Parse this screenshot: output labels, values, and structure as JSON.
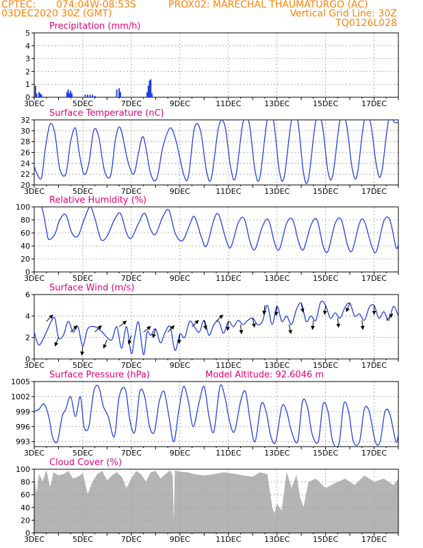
{
  "header": {
    "line1_left": "CPTEC:",
    "line1_coords": "074:04W-08:53S",
    "line1_station": "PROX02: MARECHAL THAUMATURGO (AC)",
    "line2_left": "03DEC2020 30Z (GMT)",
    "line2_right": "Vertical Grid Line: 30Z",
    "line3_right": "TQ0126L028"
  },
  "colors": {
    "header": "#ff8000",
    "title": "#e0007a",
    "line": "#1f3fe0",
    "bar": "#1f3fe0",
    "cloud": "#b4b4b4",
    "arrow": "#000000",
    "grid": "#999999"
  },
  "x_axis": {
    "start_day": 3,
    "end_day": 18,
    "tick_labels": [
      "3DEC",
      "5DEC",
      "7DEC",
      "9DEC",
      "11DEC",
      "13DEC",
      "15DEC",
      "17DEC"
    ],
    "tick_days": [
      3,
      5,
      7,
      9,
      11,
      13,
      15,
      17
    ]
  },
  "chart_data": [
    {
      "type": "bar",
      "title": "Precipitation (mm/h)",
      "ylim": [
        0,
        5
      ],
      "yticks": [
        0,
        1,
        2,
        3,
        4,
        5
      ],
      "x": [
        3.05,
        3.1,
        3.2,
        3.25,
        3.3,
        4.35,
        4.4,
        4.45,
        4.5,
        4.55,
        5.1,
        5.2,
        5.3,
        5.4,
        5.5,
        6.4,
        6.5,
        6.55,
        7.65,
        7.7,
        7.75,
        7.8,
        7.85
      ],
      "values": [
        0.9,
        0.3,
        0.4,
        0.3,
        0.2,
        0.4,
        0.6,
        0.3,
        0.5,
        0.3,
        0.2,
        0.2,
        0.2,
        0.2,
        0.1,
        0.6,
        0.7,
        0.4,
        0.4,
        0.9,
        1.3,
        1.4,
        0.3
      ]
    },
    {
      "type": "line",
      "title": "Surface Temperature (nC)",
      "ylim": [
        20,
        32
      ],
      "yticks": [
        20,
        22,
        24,
        26,
        28,
        30,
        32
      ],
      "x": [
        3.0,
        3.1,
        3.3,
        3.45,
        3.65,
        3.85,
        4.05,
        4.3,
        4.5,
        4.7,
        4.85,
        5.05,
        5.25,
        5.45,
        5.65,
        5.9,
        6.15,
        6.35,
        6.55,
        6.85,
        7.1,
        7.3,
        7.5,
        7.8,
        8.05,
        8.3,
        8.6,
        8.85,
        9.15,
        9.35,
        9.6,
        9.85,
        10.1,
        10.3,
        10.6,
        10.85,
        11.1,
        11.3,
        11.6,
        11.85,
        12.1,
        12.3,
        12.6,
        12.85,
        13.1,
        13.3,
        13.6,
        13.85,
        14.1,
        14.3,
        14.6,
        14.85,
        15.1,
        15.3,
        15.6,
        15.85,
        16.1,
        16.3,
        16.6,
        16.85,
        17.1,
        17.3,
        17.6,
        17.85,
        18.0
      ],
      "values": [
        23.5,
        22.2,
        21.3,
        26.5,
        31.2,
        29.5,
        23.0,
        22.0,
        28.0,
        30.5,
        26.0,
        22.0,
        24.0,
        30.0,
        29.0,
        22.5,
        21.8,
        28.5,
        30.5,
        24.5,
        22.0,
        26.0,
        28.8,
        22.0,
        21.2,
        27.0,
        30.5,
        28.0,
        22.0,
        21.5,
        30.5,
        30.0,
        22.5,
        21.3,
        30.8,
        31.0,
        23.0,
        21.5,
        31.5,
        31.5,
        22.5,
        21.5,
        32.0,
        32.0,
        22.5,
        21.5,
        32.0,
        32.0,
        22.0,
        21.2,
        31.8,
        31.5,
        22.5,
        21.8,
        32.0,
        31.5,
        23.0,
        21.8,
        32.0,
        31.5,
        23.5,
        22.0,
        32.0,
        31.5,
        31.5
      ]
    },
    {
      "type": "line",
      "title": "Relative Humidity (%)",
      "ylim": [
        0,
        100
      ],
      "yticks": [
        0,
        20,
        40,
        60,
        80,
        100
      ],
      "x": [
        3.0,
        3.3,
        3.5,
        3.6,
        3.85,
        4.05,
        4.3,
        4.55,
        4.8,
        5.05,
        5.3,
        5.5,
        5.75,
        6.0,
        6.3,
        6.55,
        6.8,
        7.0,
        7.3,
        7.55,
        7.8,
        8.0,
        8.3,
        8.55,
        8.8,
        9.1,
        9.4,
        9.6,
        9.9,
        10.1,
        10.4,
        10.6,
        10.9,
        11.1,
        11.4,
        11.65,
        11.9,
        12.1,
        12.4,
        12.65,
        12.9,
        13.1,
        13.4,
        13.65,
        13.9,
        14.1,
        14.4,
        14.65,
        14.9,
        15.1,
        15.4,
        15.65,
        15.9,
        16.1,
        16.4,
        16.6,
        16.9,
        17.1,
        17.4,
        17.65,
        17.9,
        18.0
      ],
      "values": [
        100,
        100,
        65,
        50,
        58,
        80,
        88,
        60,
        55,
        80,
        100,
        82,
        50,
        55,
        80,
        90,
        60,
        52,
        75,
        90,
        65,
        58,
        85,
        95,
        60,
        48,
        72,
        85,
        52,
        40,
        80,
        88,
        50,
        38,
        75,
        82,
        45,
        35,
        70,
        80,
        45,
        35,
        75,
        80,
        45,
        35,
        72,
        80,
        40,
        32,
        75,
        80,
        42,
        33,
        75,
        78,
        40,
        32,
        78,
        80,
        38,
        42
      ]
    },
    {
      "type": "line",
      "title": "Surface Wind (m/s)",
      "ylim": [
        0,
        6
      ],
      "yticks": [
        0,
        2,
        4,
        6
      ],
      "x": [
        3.0,
        3.2,
        3.5,
        3.7,
        3.85,
        4.0,
        4.2,
        4.4,
        4.6,
        4.8,
        5.0,
        5.2,
        5.5,
        5.8,
        6.0,
        6.2,
        6.4,
        6.6,
        6.8,
        7.0,
        7.15,
        7.3,
        7.5,
        7.65,
        7.8,
        8.0,
        8.2,
        8.4,
        8.6,
        8.8,
        9.0,
        9.2,
        9.4,
        9.6,
        9.8,
        10.0,
        10.2,
        10.4,
        10.6,
        10.8,
        11.0,
        11.2,
        11.4,
        11.6,
        11.8,
        12.0,
        12.2,
        12.4,
        12.6,
        12.8,
        13.0,
        13.2,
        13.4,
        13.6,
        13.8,
        14.0,
        14.2,
        14.4,
        14.6,
        14.8,
        15.0,
        15.2,
        15.4,
        15.6,
        15.8,
        16.0,
        16.2,
        16.4,
        16.6,
        16.8,
        17.0,
        17.2,
        17.4,
        17.6,
        17.8,
        18.0
      ],
      "values": [
        2.5,
        1.3,
        2.5,
        3.5,
        3.8,
        2.0,
        2.2,
        3.5,
        2.5,
        3.0,
        1.2,
        2.8,
        3.0,
        2.5,
        2.0,
        1.8,
        3.0,
        1.0,
        3.0,
        0.5,
        2.2,
        3.4,
        0.4,
        2.5,
        2.2,
        2.8,
        1.5,
        2.5,
        3.0,
        0.8,
        2.3,
        2.0,
        3.5,
        3.0,
        2.5,
        3.6,
        2.2,
        3.2,
        3.5,
        2.4,
        3.5,
        3.0,
        3.6,
        3.2,
        3.6,
        3.8,
        3.2,
        3.5,
        5.0,
        3.2,
        4.9,
        3.5,
        4.0,
        3.2,
        4.6,
        5.2,
        3.5,
        4.0,
        3.6,
        5.3,
        5.0,
        3.8,
        4.3,
        3.8,
        4.8,
        5.2,
        4.0,
        4.2,
        3.6,
        4.8,
        5.0,
        3.8,
        4.4,
        3.6,
        4.9,
        4.0
      ]
    },
    {
      "type": "line",
      "title": "Surface Pressure (hPa)",
      "annotation": "Model Altitude: 92.6046 m",
      "ylim": [
        992,
        1005
      ],
      "yticks": [
        993,
        996,
        999,
        1002,
        1005
      ],
      "x": [
        3.0,
        3.2,
        3.4,
        3.6,
        3.75,
        3.95,
        4.15,
        4.3,
        4.5,
        4.7,
        4.9,
        5.05,
        5.25,
        5.45,
        5.65,
        5.85,
        6.05,
        6.3,
        6.5,
        6.75,
        6.95,
        7.15,
        7.35,
        7.55,
        7.75,
        7.95,
        8.15,
        8.35,
        8.55,
        8.75,
        8.95,
        9.15,
        9.35,
        9.55,
        9.8,
        10.0,
        10.2,
        10.4,
        10.65,
        10.85,
        11.05,
        11.25,
        11.5,
        11.7,
        11.9,
        12.1,
        12.35,
        12.55,
        12.75,
        12.95,
        13.2,
        13.4,
        13.6,
        13.85,
        14.05,
        14.25,
        14.45,
        14.7,
        14.9,
        15.1,
        15.3,
        15.55,
        15.75,
        15.95,
        16.15,
        16.4,
        16.6,
        16.8,
        17.05,
        17.25,
        17.45,
        17.65,
        17.9,
        18.0
      ],
      "values": [
        999.0,
        999.5,
        1000.5,
        998.0,
        994.0,
        993.0,
        998.0,
        999.5,
        1002.0,
        998.0,
        1002.0,
        996.0,
        996.0,
        1003.0,
        1004.0,
        1000.0,
        998.0,
        994.0,
        1002.0,
        1003.5,
        997.0,
        995.0,
        1003.0,
        1002.0,
        996.0,
        995.0,
        1001.0,
        1003.0,
        998.0,
        993.0,
        999.0,
        1004.0,
        1001.0,
        996.0,
        1001.0,
        1004.0,
        998.0,
        995.0,
        1004.0,
        1002.0,
        997.0,
        995.0,
        1001.0,
        1003.0,
        997.0,
        993.0,
        1000.5,
        999.0,
        994.0,
        993.0,
        1000.0,
        999.0,
        995.0,
        993.0,
        1001.0,
        1000.0,
        994.5,
        993.0,
        1000.5,
        999.0,
        993.0,
        992.5,
        1000.5,
        999.0,
        993.0,
        993.0,
        999.5,
        999.0,
        993.0,
        993.0,
        999.0,
        998.5,
        993.0,
        994.5
      ]
    },
    {
      "type": "area",
      "title": "Cloud Cover (%)",
      "ylim": [
        0,
        100
      ],
      "yticks": [
        0,
        20,
        40,
        60,
        80,
        100
      ],
      "x": [
        3.0,
        3.1,
        3.2,
        3.35,
        3.5,
        3.65,
        3.8,
        4.0,
        4.2,
        4.4,
        4.6,
        4.8,
        5.0,
        5.2,
        5.4,
        5.6,
        5.8,
        6.0,
        6.2,
        6.4,
        6.6,
        6.8,
        7.0,
        7.2,
        7.4,
        7.6,
        7.8,
        8.0,
        8.2,
        8.4,
        8.6,
        8.7,
        8.75,
        8.8,
        9.0,
        9.3,
        9.6,
        10.0,
        10.4,
        10.8,
        11.2,
        11.6,
        12.0,
        12.3,
        12.6,
        12.8,
        12.9,
        13.0,
        13.2,
        13.4,
        13.6,
        13.8,
        13.95,
        14.1,
        14.3,
        14.6,
        15.0,
        15.4,
        15.8,
        16.2,
        16.6,
        17.0,
        17.4,
        17.8,
        18.0
      ],
      "values": [
        85,
        60,
        92,
        80,
        98,
        70,
        95,
        90,
        92,
        97,
        85,
        88,
        93,
        60,
        80,
        92,
        97,
        82,
        90,
        95,
        88,
        70,
        85,
        97,
        92,
        80,
        95,
        97,
        85,
        92,
        98,
        90,
        5,
        98,
        96,
        95,
        92,
        90,
        92,
        95,
        93,
        90,
        88,
        95,
        92,
        40,
        30,
        45,
        35,
        95,
        70,
        90,
        55,
        40,
        80,
        85,
        70,
        78,
        85,
        75,
        90,
        80,
        85,
        75,
        85
      ]
    },
    {
      "type": "quiver",
      "title": "Surface Wind direction arrows",
      "x": [
        3.5,
        4.0,
        4.5,
        5.0,
        5.5,
        6.0,
        6.5,
        7.0,
        7.5,
        8.0,
        8.5,
        9.0,
        9.5,
        10.0,
        10.5,
        11.0,
        11.5,
        12.0,
        12.5,
        13.0,
        13.5,
        14.0,
        14.5,
        15.0,
        15.5,
        16.0,
        16.5,
        17.0,
        17.5
      ],
      "u": [
        1.0,
        -0.4,
        1.0,
        -0.1,
        1.0,
        -0.4,
        1.0,
        -0.3,
        1.0,
        -0.3,
        1.0,
        -0.1,
        1.0,
        0.2,
        1.0,
        -0.1,
        0.1,
        0.2,
        -0.1,
        -0.1,
        0.2,
        0.2,
        -0.1,
        -0.1,
        0.1,
        -0.4,
        0.1,
        0.0,
        1.0
      ],
      "v": [
        1.0,
        -1.0,
        1.0,
        -1.0,
        1.0,
        -1.0,
        0.8,
        -1.0,
        0.8,
        -1.0,
        1.0,
        -1.0,
        1.0,
        -1.0,
        1.0,
        -1.0,
        -1.0,
        -1.0,
        -1.0,
        -1.0,
        -1.0,
        -1.0,
        -1.0,
        -1.0,
        -1.0,
        -1.0,
        -1.0,
        -1.0,
        1.0
      ]
    }
  ]
}
